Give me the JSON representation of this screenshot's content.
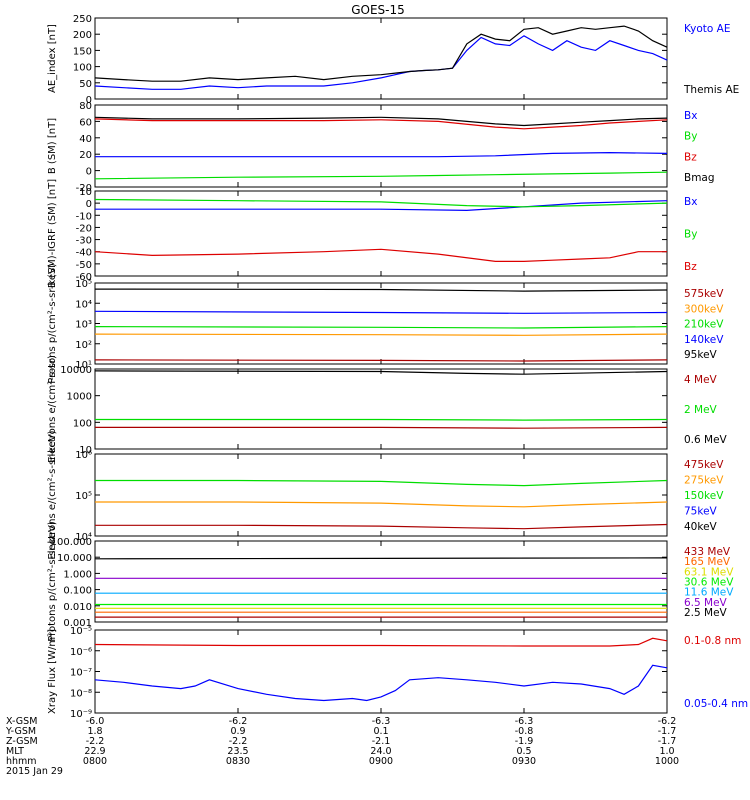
{
  "title": "GOES-15",
  "colors": {
    "black": "#000000",
    "blue": "#0000ff",
    "green": "#00dd00",
    "red": "#dd0000",
    "darkred": "#aa0000",
    "orange": "#ff9900",
    "cyan": "#00aaff",
    "purple": "#8800cc",
    "yellow": "#dddd00",
    "magenta": "#aa0066",
    "lime": "#00ee00"
  },
  "xaxis": {
    "ticks": [
      "0800",
      "0830",
      "0900",
      "0930",
      "1000"
    ],
    "xrange": [
      800,
      1000
    ],
    "rows": [
      {
        "label": "X-GSM",
        "values": [
          "-6.0",
          "-6.2",
          "-6.3",
          "-6.3",
          "-6.2"
        ]
      },
      {
        "label": "Y-GSM",
        "values": [
          "1.8",
          "0.9",
          "0.1",
          "-0.8",
          "-1.7"
        ]
      },
      {
        "label": "Z-GSM",
        "values": [
          "-2.2",
          "-2.2",
          "-2.1",
          "-1.9",
          "-1.7"
        ]
      },
      {
        "label": "MLT",
        "values": [
          "22.9",
          "23.5",
          "24.0",
          "0.5",
          "1.0"
        ]
      },
      {
        "label": "hhmm",
        "values": [
          "0800",
          "0830",
          "0900",
          "0930",
          "1000"
        ]
      }
    ],
    "date": "2015 Jan 29"
  },
  "chart_data": [
    {
      "type": "line",
      "ylabel": "AE_index [nT]",
      "yscale": "linear",
      "ylim": [
        0,
        250
      ],
      "yticks": [
        "0",
        "50",
        "100",
        "150",
        "200",
        "250"
      ],
      "legend": [
        {
          "name": "Kyoto AE",
          "color": "#0000ff"
        },
        {
          "name": "Themis AE",
          "color": "#000000"
        }
      ],
      "series": [
        {
          "name": "Kyoto AE",
          "color": "#0000ff",
          "x": [
            800,
            810,
            820,
            830,
            840,
            850,
            860,
            870,
            880,
            890,
            900,
            905,
            910,
            915,
            920,
            925,
            930,
            935,
            940,
            945,
            950,
            955,
            960,
            965,
            970,
            975,
            980,
            985,
            990,
            995,
            1000
          ],
          "values": [
            40,
            35,
            30,
            30,
            40,
            35,
            40,
            40,
            40,
            50,
            65,
            75,
            85,
            88,
            90,
            95,
            150,
            190,
            170,
            165,
            195,
            170,
            150,
            180,
            160,
            150,
            180,
            165,
            150,
            140,
            120
          ]
        },
        {
          "name": "Themis AE",
          "color": "#000000",
          "x": [
            800,
            810,
            820,
            830,
            840,
            850,
            860,
            870,
            880,
            890,
            900,
            905,
            910,
            915,
            920,
            925,
            930,
            935,
            940,
            945,
            950,
            955,
            960,
            965,
            970,
            975,
            980,
            985,
            990,
            995,
            1000
          ],
          "values": [
            65,
            60,
            55,
            55,
            65,
            60,
            65,
            70,
            60,
            70,
            75,
            80,
            85,
            88,
            90,
            95,
            170,
            200,
            185,
            180,
            215,
            220,
            200,
            210,
            220,
            215,
            220,
            225,
            210,
            180,
            160
          ]
        }
      ]
    },
    {
      "type": "line",
      "ylabel": "B (SM) [nT]",
      "yscale": "linear",
      "ylim": [
        -20,
        80
      ],
      "yticks": [
        "-20",
        "0",
        "20",
        "40",
        "60",
        "80"
      ],
      "legend": [
        {
          "name": "Bx",
          "color": "#0000ff"
        },
        {
          "name": "By",
          "color": "#00dd00"
        },
        {
          "name": "Bz",
          "color": "#dd0000"
        },
        {
          "name": "Bmag",
          "color": "#000000"
        }
      ],
      "series": [
        {
          "name": "Bx",
          "color": "#0000ff",
          "x": [
            800,
            850,
            900,
            920,
            940,
            960,
            980,
            1000
          ],
          "values": [
            17,
            17,
            17,
            17,
            18,
            21,
            22,
            21
          ]
        },
        {
          "name": "By",
          "color": "#00dd00",
          "x": [
            800,
            850,
            900,
            920,
            940,
            960,
            980,
            1000
          ],
          "values": [
            -10,
            -8,
            -7,
            -6,
            -5,
            -4,
            -3,
            -2
          ]
        },
        {
          "name": "Bz",
          "color": "#dd0000",
          "x": [
            800,
            820,
            850,
            880,
            900,
            920,
            940,
            950,
            960,
            970,
            980,
            990,
            1000
          ],
          "values": [
            63,
            61,
            61,
            61,
            62,
            60,
            53,
            51,
            53,
            55,
            58,
            60,
            62
          ]
        },
        {
          "name": "Bmag",
          "color": "#000000",
          "x": [
            800,
            820,
            850,
            880,
            900,
            920,
            940,
            950,
            960,
            970,
            980,
            990,
            1000
          ],
          "values": [
            65,
            63,
            63,
            64,
            65,
            63,
            57,
            55,
            57,
            59,
            61,
            63,
            64
          ]
        }
      ]
    },
    {
      "type": "line",
      "ylabel": "B (SM)-IGRF (SM) [nT]",
      "yscale": "linear",
      "ylim": [
        -60,
        10
      ],
      "yticks": [
        "-60",
        "-50",
        "-40",
        "-30",
        "-20",
        "-10",
        "0",
        "10"
      ],
      "legend": [
        {
          "name": "Bx",
          "color": "#0000ff"
        },
        {
          "name": "By",
          "color": "#00dd00"
        },
        {
          "name": "Bz",
          "color": "#dd0000"
        }
      ],
      "series": [
        {
          "name": "Bx",
          "color": "#0000ff",
          "x": [
            800,
            850,
            900,
            930,
            950,
            970,
            1000
          ],
          "values": [
            -5,
            -5,
            -5,
            -6,
            -3,
            0,
            2
          ]
        },
        {
          "name": "By",
          "color": "#00dd00",
          "x": [
            800,
            850,
            900,
            930,
            950,
            970,
            1000
          ],
          "values": [
            3,
            2,
            1,
            -2,
            -3,
            -2,
            0
          ]
        },
        {
          "name": "Bz",
          "color": "#dd0000",
          "x": [
            800,
            820,
            850,
            880,
            900,
            920,
            940,
            950,
            960,
            970,
            980,
            990,
            1000
          ],
          "values": [
            -40,
            -43,
            -42,
            -40,
            -38,
            -42,
            -48,
            -48,
            -47,
            -46,
            -45,
            -40,
            -40
          ]
        }
      ]
    },
    {
      "type": "line",
      "ylabel": "Protons p/(cm²-s-sr-keV)",
      "yscale": "log",
      "ylim": [
        10,
        100000
      ],
      "yticks": [
        "10¹",
        "10²",
        "10³",
        "10⁴",
        "10⁵"
      ],
      "legend": [
        {
          "name": "575keV",
          "color": "#aa0000"
        },
        {
          "name": "300keV",
          "color": "#ff9900"
        },
        {
          "name": "210keV",
          "color": "#00dd00"
        },
        {
          "name": "140keV",
          "color": "#0000ff"
        },
        {
          "name": "95keV",
          "color": "#000000"
        }
      ],
      "series": [
        {
          "name": "95keV",
          "color": "#000000",
          "x": [
            800,
            900,
            950,
            1000
          ],
          "values": [
            50000,
            48000,
            40000,
            45000
          ]
        },
        {
          "name": "140keV",
          "color": "#0000ff",
          "x": [
            800,
            900,
            950,
            1000
          ],
          "values": [
            4000,
            3500,
            3200,
            3500
          ]
        },
        {
          "name": "210keV",
          "color": "#00dd00",
          "x": [
            800,
            900,
            950,
            1000
          ],
          "values": [
            700,
            650,
            600,
            700
          ]
        },
        {
          "name": "300keV",
          "color": "#ff9900",
          "x": [
            800,
            900,
            950,
            1000
          ],
          "values": [
            300,
            280,
            260,
            300
          ]
        },
        {
          "name": "575keV",
          "color": "#aa0000",
          "x": [
            800,
            900,
            950,
            1000
          ],
          "values": [
            16,
            15,
            14,
            16
          ]
        }
      ]
    },
    {
      "type": "line",
      "ylabel": "Electrons e/(cm²-s-sr)",
      "yscale": "log",
      "ylim": [
        1,
        10000
      ],
      "yticks": [
        "10",
        "100",
        "1000",
        "10000"
      ],
      "legend": [
        {
          "name": "4 MeV",
          "color": "#aa0000"
        },
        {
          "name": "2 MeV",
          "color": "#00dd00"
        },
        {
          "name": "0.6 MeV",
          "color": "#000000"
        }
      ],
      "series": [
        {
          "name": "0.6 MeV",
          "color": "#000000",
          "x": [
            800,
            900,
            930,
            950,
            1000
          ],
          "values": [
            8000,
            7500,
            6000,
            5500,
            7500
          ]
        },
        {
          "name": "2 MeV",
          "color": "#00dd00",
          "x": [
            800,
            900,
            950,
            1000
          ],
          "values": [
            30,
            30,
            28,
            30
          ]
        },
        {
          "name": "4 MeV",
          "color": "#aa0000",
          "x": [
            800,
            900,
            950,
            1000
          ],
          "values": [
            12,
            12,
            11,
            12
          ]
        }
      ]
    },
    {
      "type": "line",
      "ylabel": "Electrons e/(cm²-s-sr-keV)",
      "yscale": "log",
      "ylim": [
        5000,
        1000000
      ],
      "yticks": [
        "10⁴",
        "10⁵",
        "10⁶"
      ],
      "legend": [
        {
          "name": "475keV",
          "color": "#aa0000"
        },
        {
          "name": "275keV",
          "color": "#ff9900"
        },
        {
          "name": "150keV",
          "color": "#00dd00"
        },
        {
          "name": "75keV",
          "color": "#0000ff"
        },
        {
          "name": "40keV",
          "color": "#000000"
        }
      ],
      "series": [
        {
          "name": "150keV",
          "color": "#00dd00",
          "x": [
            800,
            850,
            900,
            930,
            950,
            970,
            1000
          ],
          "values": [
            180000,
            180000,
            170000,
            140000,
            130000,
            150000,
            180000
          ]
        },
        {
          "name": "275keV",
          "color": "#ff9900",
          "x": [
            800,
            850,
            900,
            930,
            950,
            970,
            1000
          ],
          "values": [
            45000,
            45000,
            42000,
            35000,
            33000,
            38000,
            45000
          ]
        },
        {
          "name": "475keV",
          "color": "#aa0000",
          "x": [
            800,
            850,
            900,
            930,
            950,
            970,
            1000
          ],
          "values": [
            10000,
            10000,
            9500,
            8500,
            8000,
            9000,
            10500
          ]
        }
      ]
    },
    {
      "type": "line",
      "ylabel": "Protons p/(cm²-s-sr-keV)",
      "yscale": "log",
      "ylim": [
        0.001,
        100
      ],
      "yticks": [
        "0.001",
        "0.010",
        "0.100",
        "1.000",
        "10.000",
        "100.000"
      ],
      "legend": [
        {
          "name": "433 MeV",
          "color": "#aa0000"
        },
        {
          "name": "165 MeV",
          "color": "#ff6600"
        },
        {
          "name": "63.1 MeV",
          "color": "#dddd00"
        },
        {
          "name": "30.6 MeV",
          "color": "#00ee00"
        },
        {
          "name": "11.6 MeV",
          "color": "#00aaff"
        },
        {
          "name": "6.5 MeV",
          "color": "#8800cc"
        },
        {
          "name": "2.5 MeV",
          "color": "#000000"
        }
      ],
      "series": [
        {
          "name": "2.5 MeV",
          "color": "#000000",
          "x": [
            800,
            1000
          ],
          "values": [
            8,
            9
          ]
        },
        {
          "name": "6.5 MeV",
          "color": "#8800cc",
          "x": [
            800,
            1000
          ],
          "values": [
            0.5,
            0.5
          ]
        },
        {
          "name": "11.6 MeV",
          "color": "#00aaff",
          "x": [
            800,
            1000
          ],
          "values": [
            0.06,
            0.06
          ]
        },
        {
          "name": "30.6 MeV",
          "color": "#00ee00",
          "x": [
            800,
            1000
          ],
          "values": [
            0.012,
            0.012
          ]
        },
        {
          "name": "63.1 MeV",
          "color": "#dddd00",
          "x": [
            800,
            1000
          ],
          "values": [
            0.007,
            0.007
          ]
        },
        {
          "name": "165 MeV",
          "color": "#ff6600",
          "x": [
            800,
            1000
          ],
          "values": [
            0.004,
            0.004
          ]
        },
        {
          "name": "433 MeV",
          "color": "#aa0000",
          "x": [
            800,
            1000
          ],
          "values": [
            0.002,
            0.002
          ]
        }
      ]
    },
    {
      "type": "line",
      "ylabel": "Xray Flux [W/m²]",
      "yscale": "log",
      "ylim": [
        1e-09,
        1e-05
      ],
      "yticks": [
        "10⁻⁹",
        "10⁻⁸",
        "10⁻⁷",
        "10⁻⁶",
        "10⁻⁵"
      ],
      "legend": [
        {
          "name": "0.1-0.8 nm",
          "color": "#dd0000"
        },
        {
          "name": "0.05-0.4 nm",
          "color": "#0000ff"
        }
      ],
      "series": [
        {
          "name": "0.1-0.8 nm",
          "color": "#dd0000",
          "x": [
            800,
            850,
            900,
            950,
            980,
            990,
            995,
            1000
          ],
          "values": [
            2e-06,
            1.8e-06,
            1.8e-06,
            1.7e-06,
            1.7e-06,
            2e-06,
            4e-06,
            3e-06
          ]
        },
        {
          "name": "0.05-0.4 nm",
          "color": "#0000ff",
          "x": [
            800,
            810,
            820,
            830,
            835,
            840,
            850,
            860,
            870,
            880,
            890,
            895,
            900,
            905,
            910,
            920,
            930,
            940,
            950,
            960,
            970,
            980,
            985,
            990,
            995,
            1000
          ],
          "values": [
            4e-08,
            3e-08,
            2e-08,
            1.5e-08,
            2e-08,
            4e-08,
            1.5e-08,
            8e-09,
            5e-09,
            4e-09,
            5e-09,
            4e-09,
            6e-09,
            1.2e-08,
            4e-08,
            5e-08,
            4e-08,
            3e-08,
            2e-08,
            3e-08,
            2.5e-08,
            1.5e-08,
            8e-09,
            2e-08,
            2e-07,
            1.5e-07
          ]
        }
      ]
    }
  ]
}
